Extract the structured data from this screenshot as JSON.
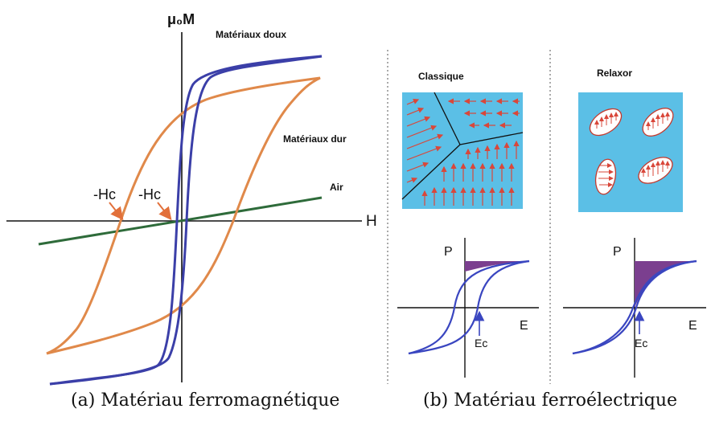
{
  "panel_a": {
    "y_axis_label": "μ₀M",
    "x_axis_label": "H",
    "curve_labels": {
      "soft": "Matériaux doux",
      "hard": "Matériaux dur",
      "air": "Air"
    },
    "coercive_labels": [
      "-Hc",
      "-Hc"
    ],
    "caption": "(a) Matériau ferromagnétique",
    "colors": {
      "soft": "#3b3fa8",
      "hard": "#e0894a",
      "air": "#2e6b3a",
      "arrow": "#e2703a"
    }
  },
  "panel_b": {
    "classic": {
      "title": "Classique",
      "p_label": "P",
      "e_label": "E",
      "ec_label": "Ec"
    },
    "relaxor": {
      "title": "Relaxor",
      "p_label": "P",
      "e_label": "E",
      "ec_label": "Ec"
    },
    "caption": "(b) Matériau ferroélectrique",
    "colors": {
      "domain_bg": "#5bbfe6",
      "arrow": "#d9473a",
      "loop": "#3a46c0",
      "energy": "#7b3f8f"
    }
  }
}
